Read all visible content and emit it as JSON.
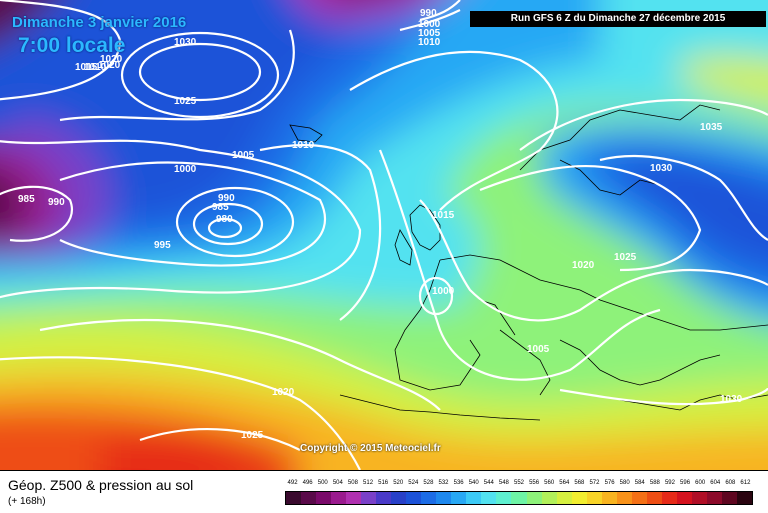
{
  "header": {
    "date": "Dimanche 3 janvier 2016",
    "time": "7:00 locale",
    "run": "Run GFS 6 Z du Dimanche 27 décembre 2015"
  },
  "footer": {
    "field_title": "Géop. Z500 & pression au sol",
    "lead_time": "(+ 168h)",
    "copyright": "Copyright © 2015 Meteociel.fr"
  },
  "legend": {
    "labels": [
      "492",
      "496",
      "500",
      "504",
      "508",
      "512",
      "516",
      "520",
      "524",
      "528",
      "532",
      "536",
      "540",
      "544",
      "548",
      "552",
      "556",
      "560",
      "564",
      "568",
      "572",
      "576",
      "580",
      "584",
      "588",
      "592",
      "596",
      "600",
      "604",
      "608",
      "612"
    ],
    "colors": [
      "#3a0a2e",
      "#5a0a4a",
      "#7a0a6a",
      "#9a1a8e",
      "#b030b0",
      "#7a40c8",
      "#4a3ac8",
      "#2840c8",
      "#1c52d8",
      "#1c6ce6",
      "#1e88ee",
      "#28a8f4",
      "#3ccaf6",
      "#52e2f0",
      "#5ef0d0",
      "#6ef4a6",
      "#8ef27a",
      "#b2f05a",
      "#d6f040",
      "#f2ee30",
      "#f8d428",
      "#f8b420",
      "#f8921a",
      "#f47016",
      "#ee4e14",
      "#e62a18",
      "#d4121e",
      "#b00e26",
      "#8c0a2a",
      "#5e0620",
      "#2a0410"
    ]
  },
  "isobar_labels": [
    {
      "text": "1030"
    },
    {
      "text": "1025"
    },
    {
      "text": "1020"
    },
    {
      "text": "1015"
    },
    {
      "text": "1010"
    },
    {
      "text": "1005"
    },
    {
      "text": "1000"
    },
    {
      "text": "995"
    },
    {
      "text": "990"
    },
    {
      "text": "985"
    },
    {
      "text": "980"
    },
    {
      "text": "985"
    },
    {
      "text": "990"
    },
    {
      "text": "1010"
    },
    {
      "text": "1005"
    },
    {
      "text": "1000"
    },
    {
      "text": "990"
    },
    {
      "text": "1015"
    },
    {
      "text": "1020"
    },
    {
      "text": "1025"
    },
    {
      "text": "1030"
    },
    {
      "text": "1035"
    },
    {
      "text": "1000"
    },
    {
      "text": "1005"
    },
    {
      "text": "1020"
    },
    {
      "text": "1025"
    },
    {
      "text": "1030"
    },
    {
      "text": "1010"
    },
    {
      "text": "1020"
    }
  ]
}
